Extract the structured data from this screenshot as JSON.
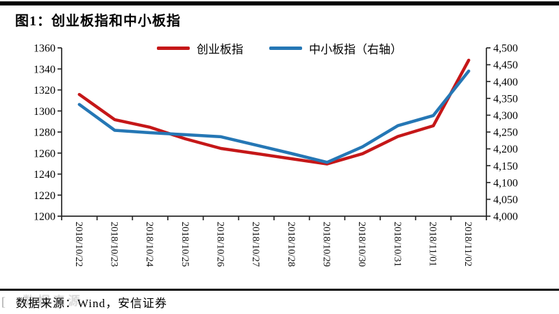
{
  "figure": {
    "title": "图1：创业板指和中小板指",
    "source": "数据来源：Wind，安信证券",
    "watermark_ghost": "数据来源",
    "corner_artifact": "["
  },
  "colors": {
    "series_red": "#c51718",
    "series_blue": "#2577b5",
    "axis": "#262626",
    "rule": "#000000"
  },
  "chart_data": {
    "type": "line",
    "title": "图1：创业板指和中小板指",
    "categories": [
      "2018/10/22",
      "2018/10/23",
      "2018/10/24",
      "2018/10/25",
      "2018/10/26",
      "2018/10/27",
      "2018/10/28",
      "2018/10/29",
      "2018/10/30",
      "2018/10/31",
      "2018/11/01",
      "2018/11/02"
    ],
    "series": [
      {
        "name": "创业板指",
        "axis": "left",
        "color": "#c51718",
        "values": [
          1315.7,
          1291.8,
          1284.5,
          1273.5,
          1264.4,
          1259.5,
          1254.6,
          1249.7,
          1259.4,
          1275.8,
          1285.9,
          1348.3
        ]
      },
      {
        "name": "中小板指（右轴）",
        "axis": "right",
        "color": "#2577b5",
        "values": [
          4332,
          4255,
          4248,
          4242,
          4236,
          4211,
          4186,
          4160,
          4206,
          4269,
          4299,
          4431
        ]
      }
    ],
    "left_axis": {
      "min": 1200,
      "max": 1360,
      "step": 20,
      "ticks": [
        "1360",
        "1340",
        "1320",
        "1300",
        "1280",
        "1260",
        "1240",
        "1220",
        "1200"
      ]
    },
    "right_axis": {
      "min": 4000,
      "max": 4500,
      "step": 50,
      "ticks": [
        "4,500",
        "4,450",
        "4,400",
        "4,350",
        "4,300",
        "4,250",
        "4,200",
        "4,150",
        "4,100",
        "4,050",
        "4,000"
      ]
    },
    "legend_position": "top-center",
    "grid": false,
    "xlabel": "",
    "ylabel": ""
  }
}
